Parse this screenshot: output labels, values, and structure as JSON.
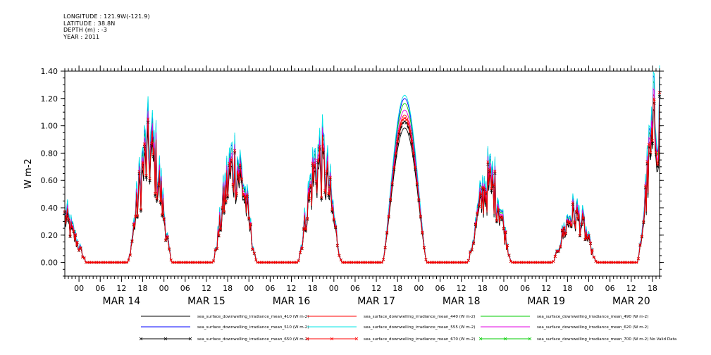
{
  "header": {
    "lines": [
      "LONGITUDE : 121.9W(-121.9)",
      "LATITUDE : 38.8N",
      "DEPTH (m) : -3",
      "YEAR : 2011"
    ]
  },
  "chart_data": {
    "type": "line",
    "title": "",
    "ylabel": "W m-2",
    "xlabel": "",
    "ylim": [
      -0.1,
      1.4
    ],
    "yticks": [
      0.0,
      0.2,
      0.4,
      0.6,
      0.8,
      1.0,
      1.2,
      1.4
    ],
    "ytick_labels": [
      "0.00",
      "0.20",
      "0.40",
      "0.60",
      "0.80",
      "1.00",
      "1.20",
      "1.40"
    ],
    "xlim_hours": [
      -4,
      164
    ],
    "x_hour_ticks": [
      "00",
      "06",
      "12",
      "18",
      "00",
      "06",
      "12",
      "18",
      "00",
      "06",
      "12",
      "18",
      "00",
      "06",
      "12",
      "18",
      "00",
      "06",
      "12",
      "18",
      "00",
      "06",
      "12",
      "18",
      "00",
      "06",
      "12",
      "18"
    ],
    "x_date_labels": [
      "MAR 14",
      "MAR 15",
      "MAR 16",
      "MAR 17",
      "MAR 18",
      "MAR 19",
      "MAR 20"
    ],
    "grid": false,
    "legend_position": "bottom",
    "days": [
      {
        "date": "MAR 14",
        "peak": 1.05,
        "noisy": true
      },
      {
        "date": "MAR 15",
        "peak": 0.92,
        "noisy": true
      },
      {
        "date": "MAR 16",
        "peak": 0.95,
        "noisy": true
      },
      {
        "date": "MAR 17",
        "peak": 1.2,
        "noisy": false
      },
      {
        "date": "MAR 18",
        "peak": 0.75,
        "noisy": true
      },
      {
        "date": "MAR 19",
        "peak": 0.45,
        "noisy": true
      },
      {
        "date": "MAR 20",
        "peak": 1.38,
        "noisy": true
      }
    ],
    "series": [
      {
        "name": "sea_surface_downwelling_irradiance_mean_410 (W m-2)",
        "color": "#000000",
        "scale": 0.82,
        "marker": "none"
      },
      {
        "name": "sea_surface_downwelling_irradiance_mean_440 (W m-2)",
        "color": "#ff0000",
        "scale": 0.9,
        "marker": "none"
      },
      {
        "name": "sea_surface_downwelling_irradiance_mean_490 (W m-2)",
        "color": "#00cc00",
        "scale": 0.97,
        "marker": "none"
      },
      {
        "name": "sea_surface_downwelling_irradiance_mean_510 (W m-2)",
        "color": "#0000ff",
        "scale": 1.0,
        "marker": "none"
      },
      {
        "name": "sea_surface_downwelling_irradiance_mean_555 (W m-2)",
        "color": "#00e5e5",
        "scale": 1.02,
        "marker": "none"
      },
      {
        "name": "sea_surface_downwelling_irradiance_mean_620 (W m-2)",
        "color": "#e000e0",
        "scale": 0.93,
        "marker": "none"
      },
      {
        "name": "sea_surface_downwelling_irradiance_mean_650 (W m-2)",
        "color": "#000000",
        "scale": 0.86,
        "marker": "x"
      },
      {
        "name": "sea_surface_downwelling_irradiance_mean_670 (W m-2)",
        "color": "#ff0000",
        "scale": 0.88,
        "marker": "x"
      },
      {
        "name": "sea_surface_downwelling_irradiance_mean_700 (W m-2) No Valid Data",
        "color": "#00cc00",
        "scale": 0.0,
        "marker": "x"
      }
    ]
  }
}
